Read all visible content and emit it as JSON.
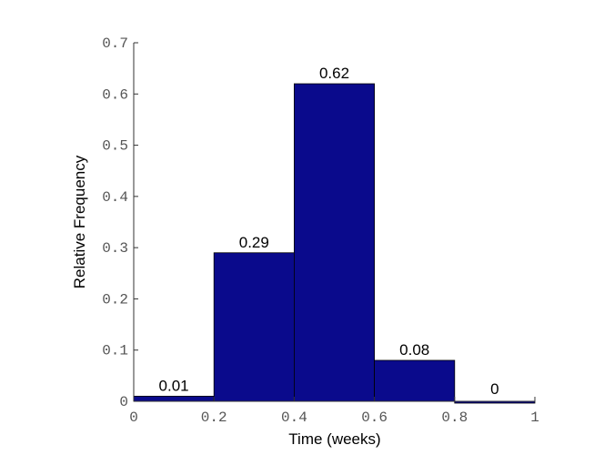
{
  "chart_data": {
    "type": "histogram",
    "xlabel": "Time (weeks)",
    "ylabel": "Relative Frequency",
    "bins": [
      0,
      0.2,
      0.4,
      0.6,
      0.8,
      1
    ],
    "values": [
      0.01,
      0.29,
      0.62,
      0.08,
      0
    ],
    "color": "#0a0a8c",
    "xlim": [
      0,
      1
    ],
    "xticks": [
      0,
      0.2,
      0.4,
      0.6,
      0.8,
      1
    ],
    "ylim": [
      0,
      0.7
    ],
    "yticks": [
      0,
      0.1,
      0.2,
      0.3,
      0.4,
      0.5,
      0.6,
      0.7
    ]
  }
}
